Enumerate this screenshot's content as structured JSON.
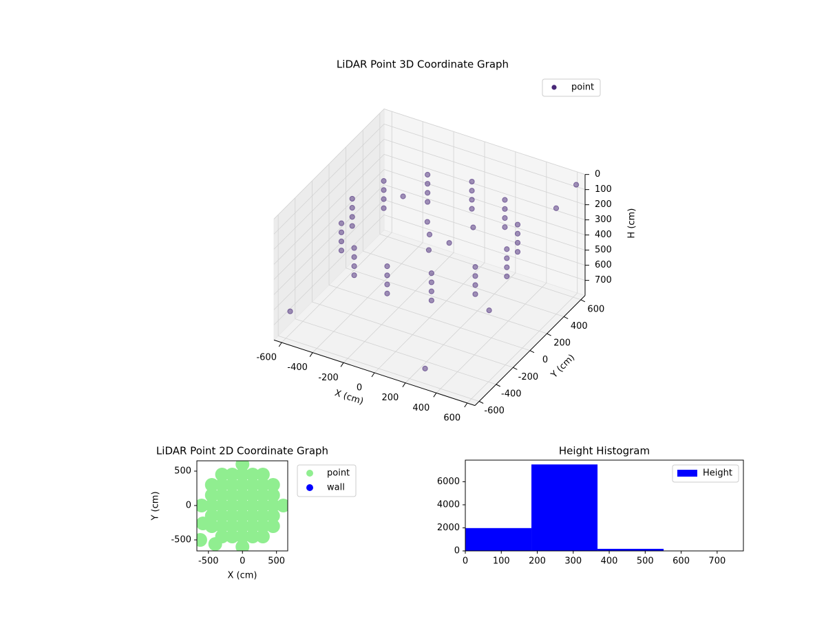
{
  "chart_data": [
    {
      "type": "scatter3d",
      "title": "LiDAR Point 3D Coordinate Graph",
      "xlabel": "X (cm)",
      "ylabel": "Y (cm)",
      "zlabel": "H (cm)",
      "xlim": [
        -650,
        650
      ],
      "ylim": [
        -650,
        650
      ],
      "zlim": [
        800,
        0
      ],
      "xticks": [
        -600,
        -400,
        -200,
        0,
        200,
        400,
        600
      ],
      "yticks": [
        -600,
        -400,
        -200,
        0,
        200,
        400,
        600
      ],
      "zticks": [
        0,
        100,
        200,
        300,
        400,
        500,
        600,
        700
      ],
      "grid": true,
      "legend": "upper right",
      "series": [
        {
          "name": "point",
          "color": "#482878",
          "x": [
            500,
            433,
            250,
            0,
            -250,
            -433,
            -500,
            -433,
            -250,
            0,
            250,
            433,
            500,
            433,
            250,
            0,
            -250,
            -433,
            -500,
            -433,
            -250,
            0,
            250,
            433,
            500,
            433,
            250,
            0,
            -250,
            -433,
            -500,
            -433,
            -250,
            0,
            250,
            433,
            500,
            433,
            250,
            0,
            -250,
            -433,
            -500,
            -433,
            -250,
            0,
            250,
            433,
            0,
            100,
            -80,
            50,
            200,
            600,
            550,
            -600,
            300,
            620,
            -500
          ],
          "y": [
            0,
            250,
            433,
            500,
            433,
            250,
            0,
            -250,
            -433,
            -500,
            -433,
            -250,
            0,
            250,
            433,
            500,
            433,
            250,
            0,
            -250,
            -433,
            -500,
            -433,
            -250,
            0,
            250,
            433,
            500,
            433,
            250,
            0,
            -250,
            -433,
            -500,
            -433,
            -250,
            0,
            250,
            433,
            500,
            433,
            250,
            0,
            -250,
            -433,
            -500,
            -433,
            -250,
            0,
            50,
            120,
            -100,
            150,
            400,
            -300,
            -550,
            -600,
            600,
            600
          ],
          "z": [
            180,
            180,
            180,
            180,
            180,
            180,
            180,
            180,
            180,
            180,
            180,
            180,
            240,
            240,
            240,
            240,
            240,
            240,
            240,
            240,
            240,
            240,
            240,
            240,
            300,
            300,
            300,
            300,
            300,
            300,
            300,
            300,
            300,
            300,
            300,
            300,
            360,
            360,
            360,
            360,
            360,
            360,
            360,
            360,
            360,
            360,
            360,
            360,
            250,
            300,
            260,
            280,
            220,
            100,
            400,
            650,
            700,
            50,
            500
          ]
        }
      ]
    },
    {
      "type": "scatter",
      "title": "LiDAR Point 2D Coordinate Graph",
      "xlabel": "X (cm)",
      "ylabel": "Y (cm)",
      "xlim": [
        -670,
        665
      ],
      "ylim": [
        -660,
        650
      ],
      "xticks": [
        -500,
        0,
        500
      ],
      "yticks": [
        -500,
        0,
        500
      ],
      "legend": "outside right",
      "series": [
        {
          "name": "point",
          "color": "#90ee90",
          "x": [
            -600,
            -450,
            -450,
            -450,
            -450,
            -450,
            -300,
            -300,
            -300,
            -300,
            -300,
            -300,
            -300,
            -150,
            -150,
            -150,
            -150,
            -150,
            -150,
            -150,
            0,
            0,
            0,
            0,
            0,
            0,
            0,
            0,
            0,
            150,
            150,
            150,
            150,
            150,
            150,
            150,
            300,
            300,
            300,
            300,
            300,
            300,
            300,
            450,
            450,
            450,
            450,
            450,
            600,
            -620,
            -580,
            -400
          ],
          "y": [
            0,
            -300,
            -150,
            0,
            150,
            300,
            -450,
            -300,
            -150,
            0,
            150,
            300,
            450,
            -450,
            -300,
            -150,
            0,
            150,
            300,
            450,
            -600,
            -450,
            -300,
            -150,
            0,
            150,
            300,
            450,
            600,
            -450,
            -300,
            -150,
            0,
            150,
            300,
            450,
            -450,
            -300,
            -150,
            0,
            150,
            300,
            450,
            -300,
            -150,
            0,
            150,
            300,
            0,
            -500,
            -260,
            -560
          ]
        },
        {
          "name": "wall",
          "color": "#0000ff",
          "x": [],
          "y": []
        }
      ]
    },
    {
      "type": "histogram",
      "title": "Height Histogram",
      "bins": [
        0,
        183.75,
        367.5,
        551.25,
        735
      ],
      "xlim": [
        0,
        773
      ],
      "ylim": [
        0,
        7875
      ],
      "xticks": [
        0,
        100,
        200,
        300,
        400,
        500,
        600,
        700
      ],
      "yticks": [
        0,
        2000,
        4000,
        6000
      ],
      "legend": "upper right",
      "series": [
        {
          "name": "Height",
          "color": "#0000ff",
          "values": [
            1980,
            7500,
            180,
            10
          ]
        }
      ]
    }
  ]
}
